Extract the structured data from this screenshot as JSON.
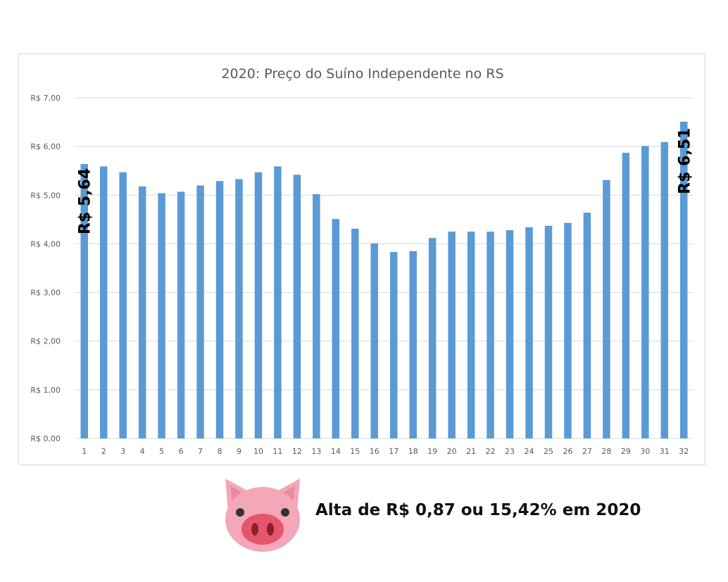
{
  "chart_data": {
    "type": "bar",
    "title": "2020: Preço do Suíno Independente no RS",
    "xlabel": "",
    "ylabel": "",
    "ylim": [
      0,
      7
    ],
    "grid": true,
    "legend": "none",
    "bar_color": "#5b9bd5",
    "y_ticks": [
      "R$ 0,00",
      "R$ 1,00",
      "R$ 2,00",
      "R$ 3,00",
      "R$ 4,00",
      "R$ 5,00",
      "R$ 6,00",
      "R$ 7,00"
    ],
    "categories": [
      "1",
      "2",
      "3",
      "4",
      "5",
      "6",
      "7",
      "8",
      "9",
      "10",
      "11",
      "12",
      "13",
      "14",
      "15",
      "16",
      "17",
      "18",
      "19",
      "20",
      "21",
      "22",
      "23",
      "24",
      "25",
      "26",
      "27",
      "28",
      "29",
      "30",
      "31",
      "32"
    ],
    "values": [
      5.64,
      5.59,
      5.47,
      5.18,
      5.04,
      5.07,
      5.2,
      5.29,
      5.33,
      5.47,
      5.59,
      5.42,
      5.02,
      4.51,
      4.31,
      4.01,
      3.83,
      3.85,
      4.12,
      4.25,
      4.25,
      4.25,
      4.28,
      4.34,
      4.37,
      4.43,
      4.64,
      5.31,
      5.87,
      6.01,
      6.09,
      6.51
    ],
    "annotations": {
      "first": "R$ 5,64",
      "last": "R$ 6,51"
    }
  },
  "footer": {
    "text": "Alta de R$ 0,87 ou 15,42% em 2020",
    "icon": "pig-face-icon",
    "pig_color": "#f4a7b9",
    "snout_color": "#e5566b"
  }
}
